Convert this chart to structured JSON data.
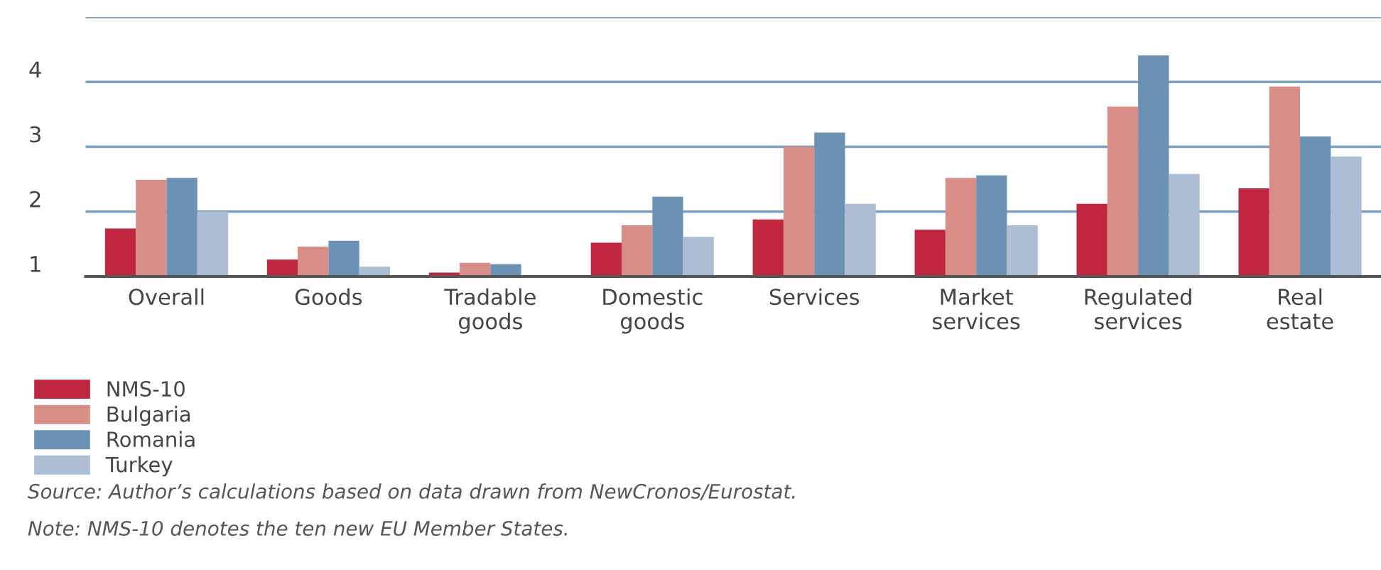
{
  "chart_data": {
    "type": "bar",
    "categories": [
      "Overall",
      "Goods",
      "Tradable\ngoods",
      "Domestic\ngoods",
      "Services",
      "Market\nservices",
      "Regulated\nservices",
      "Real\nestate"
    ],
    "series": [
      {
        "name": "NMS-10",
        "color": "#c0263f",
        "values": [
          1.74,
          1.26,
          1.06,
          1.52,
          1.88,
          1.72,
          2.12,
          2.36
        ]
      },
      {
        "name": "Bulgaria",
        "color": "#d98d87",
        "values": [
          2.49,
          1.46,
          1.21,
          1.79,
          3.0,
          2.52,
          3.62,
          3.93
        ]
      },
      {
        "name": "Romania",
        "color": "#6b92b5",
        "values": [
          2.52,
          1.55,
          1.19,
          2.23,
          3.22,
          2.56,
          4.41,
          3.16
        ]
      },
      {
        "name": "Turkey",
        "color": "#adbed4",
        "values": [
          2.0,
          1.15,
          null,
          1.61,
          2.12,
          1.79,
          2.58,
          2.85
        ]
      }
    ],
    "ylim": [
      1,
      5
    ],
    "yticks": [
      1,
      2,
      3,
      4,
      {
        "value": 5,
        "label": null
      }
    ],
    "grid": "y",
    "legend": "bottom",
    "annotations": [
      "Source: Author’s calculations based on data drawn from NewCronos/Eurostat.",
      "Note: NMS-10 denotes the ten new EU Member States."
    ]
  }
}
